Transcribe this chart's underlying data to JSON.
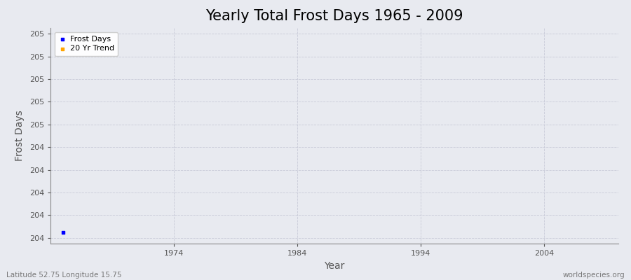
{
  "title": "Yearly Total Frost Days 1965 - 2009",
  "xlabel": "Year",
  "ylabel": "Frost Days",
  "background_color": "#e8eaf0",
  "plot_bg_color": "#e8eaf0",
  "frost_days_color": "#0000ff",
  "trend_color": "#ffa500",
  "legend_entries": [
    "Frost Days",
    "20 Yr Trend"
  ],
  "caption_left": "Latitude 52.75 Longitude 15.75",
  "caption_right": "worldspecies.org",
  "years": [
    1965
  ],
  "frost_values": [
    204.05
  ],
  "xlim": [
    1964,
    2010
  ],
  "ylim_min": 203.95,
  "ylim_max": 205.85,
  "ytick_values": [
    204.0,
    204.2,
    204.4,
    204.6,
    204.8,
    205.0,
    205.2,
    205.4,
    205.6,
    205.8
  ],
  "xtick_values": [
    1974,
    1984,
    1994,
    2004
  ],
  "grid_color": "#c8cad8",
  "title_fontsize": 15,
  "axis_label_fontsize": 10,
  "tick_fontsize": 8,
  "marker_size": 3
}
